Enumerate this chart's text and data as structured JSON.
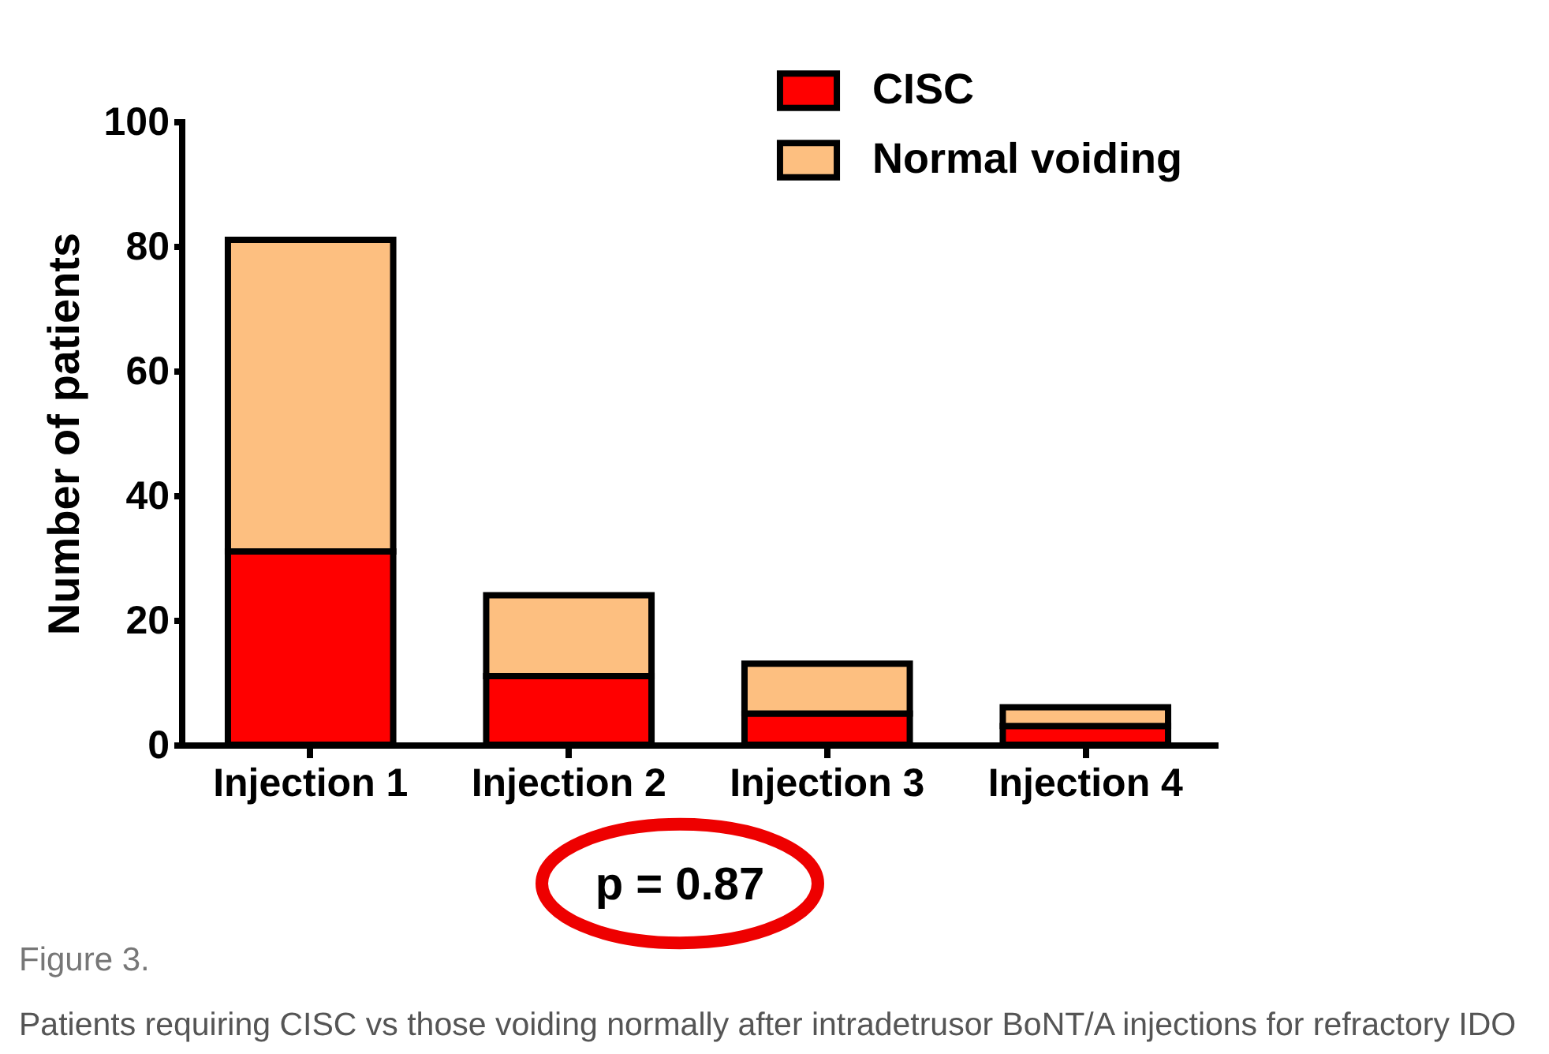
{
  "chart_data": {
    "type": "bar",
    "stacked": true,
    "ylabel": "Number of patients",
    "categories": [
      "Injection 1",
      "Injection 2",
      "Injection 3",
      "Injection 4"
    ],
    "series": [
      {
        "name": "CISC",
        "color": "#ff0000",
        "values": [
          31,
          11,
          5,
          3
        ]
      },
      {
        "name": "Normal voiding",
        "color": "#fdbf80",
        "values": [
          50,
          13,
          8,
          3
        ]
      }
    ],
    "ylim": [
      0,
      100
    ],
    "yticks": [
      0,
      20,
      40,
      60,
      80,
      100
    ],
    "legend": "top right",
    "grid": false,
    "annotations": [
      "p = 0.87",
      "Figure 3.",
      "Patients requiring CISC vs those voiding normally after intradetrusor BoNT/A injections for refractory IDO"
    ]
  }
}
